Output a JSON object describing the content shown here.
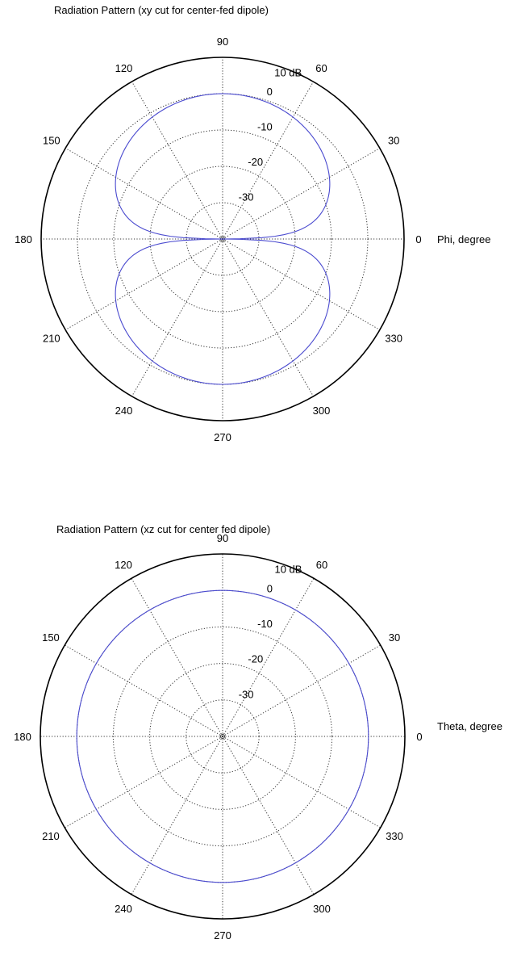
{
  "chart_data": [
    {
      "type": "polar-line",
      "title": "Radiation Pattern (xy cut for center-fed dipole)",
      "angle_label": "Phi, degree",
      "radial_unit": "dB",
      "radial_range_db": [
        -40,
        10
      ],
      "radial_ticks": [
        {
          "value": 10,
          "label": "10 dB"
        },
        {
          "value": 0,
          "label": "0"
        },
        {
          "value": -10,
          "label": "-10"
        },
        {
          "value": -20,
          "label": "-20"
        },
        {
          "value": -30,
          "label": "-30"
        }
      ],
      "angle_ticks": [
        "0",
        "30",
        "60",
        "90",
        "120",
        "150",
        "180",
        "210",
        "240",
        "270",
        "300",
        "330"
      ],
      "grid": true,
      "series_color": "#4a4acf",
      "series": {
        "angle_deg": [
          0,
          15,
          30,
          45,
          60,
          75,
          90,
          105,
          120,
          135,
          150,
          165,
          180,
          195,
          210,
          225,
          240,
          255,
          270,
          285,
          300,
          315,
          330,
          345
        ],
        "gain_db": [
          -40,
          -11.7,
          -6.0,
          -3.0,
          -1.2,
          -0.3,
          0,
          -0.3,
          -1.2,
          -3.0,
          -6.0,
          -11.7,
          -40,
          -11.7,
          -6.0,
          -3.0,
          -1.2,
          -0.3,
          0,
          -0.3,
          -1.2,
          -3.0,
          -6.0,
          -11.7
        ]
      }
    },
    {
      "type": "polar-line",
      "title": "Radiation Pattern (xz cut for center fed dipole)",
      "angle_label": "Theta, degree",
      "radial_unit": "dB",
      "radial_range_db": [
        -40,
        10
      ],
      "radial_ticks": [
        {
          "value": 10,
          "label": "10 dB"
        },
        {
          "value": 0,
          "label": "0"
        },
        {
          "value": -10,
          "label": "-10"
        },
        {
          "value": -20,
          "label": "-20"
        },
        {
          "value": -30,
          "label": "-30"
        }
      ],
      "angle_ticks": [
        "0",
        "30",
        "60",
        "90",
        "120",
        "150",
        "180",
        "210",
        "240",
        "270",
        "300",
        "330"
      ],
      "grid": true,
      "series_color": "#4a4acf",
      "series": {
        "angle_deg": [
          0,
          45,
          90,
          135,
          180,
          225,
          270,
          315
        ],
        "gain_db": [
          0,
          0,
          0,
          0,
          0,
          0,
          0,
          0
        ]
      }
    }
  ]
}
